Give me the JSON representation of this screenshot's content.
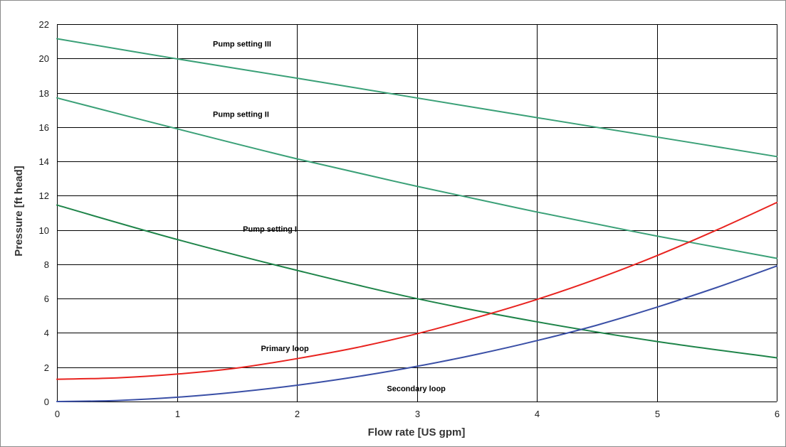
{
  "chart_data": {
    "type": "line",
    "xlabel": "Flow rate [US gpm]",
    "ylabel": "Pressure [ft head]",
    "xlim": [
      0,
      6
    ],
    "ylim": [
      0,
      22
    ],
    "xticks": [
      0,
      1,
      2,
      3,
      4,
      5,
      6
    ],
    "yticks": [
      0,
      2,
      4,
      6,
      8,
      10,
      12,
      14,
      16,
      18,
      20,
      22
    ],
    "grid": true,
    "legend": "none",
    "series": [
      {
        "name": "Pump setting III",
        "color": "#3aa077",
        "x": [
          0,
          1,
          2,
          3,
          4,
          5,
          6
        ],
        "y": [
          21.15,
          19.98,
          18.85,
          17.7,
          16.55,
          15.42,
          14.28
        ],
        "label_at": [
          1.3,
          20.7
        ]
      },
      {
        "name": "Pump setting II",
        "color": "#3aa077",
        "x": [
          0,
          1,
          2,
          3,
          4,
          5,
          6
        ],
        "y": [
          17.7,
          15.9,
          14.15,
          12.55,
          11.05,
          9.65,
          8.35
        ],
        "label_at": [
          1.3,
          16.6
        ]
      },
      {
        "name": "Pump setting I",
        "color": "#1e8449",
        "x": [
          0,
          1,
          2,
          3,
          4,
          5,
          6
        ],
        "y": [
          11.45,
          9.45,
          7.65,
          6.0,
          4.65,
          3.5,
          2.55
        ],
        "label_at": [
          1.55,
          9.9
        ]
      },
      {
        "name": "Primary loop",
        "color": "#e8231f",
        "x": [
          0,
          0.5,
          1,
          1.5,
          2,
          2.5,
          3,
          3.5,
          4,
          4.5,
          5,
          5.5,
          6
        ],
        "y": [
          1.3,
          1.38,
          1.6,
          1.95,
          2.5,
          3.15,
          3.95,
          4.9,
          5.95,
          7.15,
          8.5,
          10.0,
          11.6
        ],
        "label_at": [
          1.7,
          2.95
        ]
      },
      {
        "name": "Secondary loop",
        "color": "#3a4fa6",
        "x": [
          0,
          0.5,
          1,
          1.5,
          2,
          2.5,
          3,
          3.5,
          4,
          4.5,
          5,
          5.5,
          6
        ],
        "y": [
          0,
          0.06,
          0.25,
          0.55,
          0.95,
          1.45,
          2.05,
          2.75,
          3.55,
          4.45,
          5.5,
          6.65,
          7.9
        ],
        "label_at": [
          2.75,
          0.6
        ]
      }
    ]
  }
}
